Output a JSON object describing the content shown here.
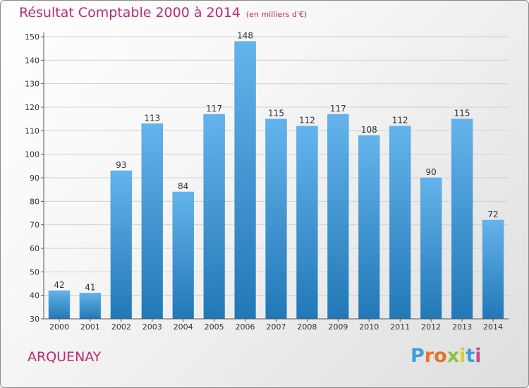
{
  "chart_data": {
    "type": "bar",
    "title": "Résultat Comptable 2000 à 2014",
    "subtitle": "(en milliers d'€)",
    "categories": [
      "2000",
      "2001",
      "2002",
      "2003",
      "2004",
      "2005",
      "2006",
      "2007",
      "2008",
      "2009",
      "2010",
      "2011",
      "2012",
      "2013",
      "2014"
    ],
    "values": [
      42,
      41,
      93,
      113,
      84,
      117,
      148,
      115,
      112,
      117,
      108,
      112,
      90,
      115,
      72
    ],
    "yticks": [
      30,
      40,
      50,
      60,
      70,
      80,
      90,
      100,
      110,
      120,
      130,
      140,
      150
    ],
    "ylim": [
      30,
      150
    ],
    "xlabel": "",
    "ylabel": "",
    "grid": true
  },
  "location": "ARQUENAY",
  "brand": {
    "letters": [
      "P",
      "r",
      "o",
      "x",
      "i",
      "t",
      "i"
    ],
    "colors": [
      "#3aa0d8",
      "#e5732a",
      "#e5732a",
      "#8cc43f",
      "#e3cc2a",
      "#3aa0d8",
      "#c94a92"
    ]
  },
  "colors": {
    "accent": "#c02a6f",
    "bar_top": "#64b3ec",
    "bar_bottom": "#2278b6"
  }
}
